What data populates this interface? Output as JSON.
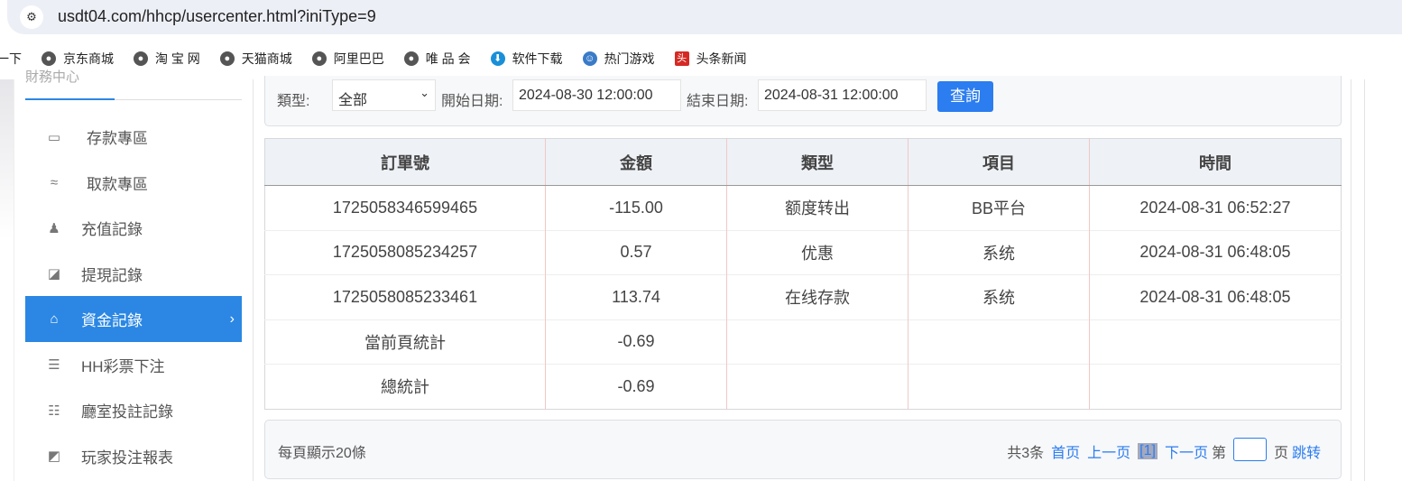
{
  "browser": {
    "url": "usdt04.com/hhcp/usercenter.html?iniType=9"
  },
  "bookmarks": [
    {
      "label": "一下",
      "icon": "none"
    },
    {
      "label": "京东商城",
      "icon": "globe-icon"
    },
    {
      "label": "淘 宝 网",
      "icon": "globe-icon"
    },
    {
      "label": "天猫商城",
      "icon": "globe-icon"
    },
    {
      "label": "阿里巴巴",
      "icon": "globe-icon"
    },
    {
      "label": "唯 品 会",
      "icon": "globe-icon"
    },
    {
      "label": "软件下载",
      "icon": "download-icon"
    },
    {
      "label": "热门游戏",
      "icon": "game-icon"
    },
    {
      "label": "头条新闻",
      "icon": "toutiao-icon"
    }
  ],
  "sidebar": {
    "title": "財務中心",
    "items": [
      {
        "label": "存款專區",
        "icon": "card-icon"
      },
      {
        "label": "取款專區",
        "icon": "hand-money-icon"
      },
      {
        "label": "充值記錄",
        "icon": "money-bag-icon"
      },
      {
        "label": "提現記錄",
        "icon": "wallet-icon"
      },
      {
        "label": "資金記錄",
        "icon": "funds-icon",
        "active": true
      },
      {
        "label": "HH彩票下注",
        "icon": "ticket-icon"
      },
      {
        "label": "廳室投註記錄",
        "icon": "list-icon"
      },
      {
        "label": "玩家投注報表",
        "icon": "chart-icon"
      }
    ]
  },
  "filter": {
    "type_label": "類型:",
    "type_value": "全部",
    "start_label": "開始日期:",
    "start_value": "2024-08-30 12:00:00",
    "end_label": "結束日期:",
    "end_value": "2024-08-31 12:00:00",
    "search_button": "查詢"
  },
  "table": {
    "headers": [
      "訂單號",
      "金額",
      "類型",
      "項目",
      "時間"
    ],
    "rows": [
      [
        "1725058346599465",
        "-115.00",
        "额度转出",
        "BB平台",
        "2024-08-31 06:52:27"
      ],
      [
        "1725058085234257",
        "0.57",
        "优惠",
        "系统",
        "2024-08-31 06:48:05"
      ],
      [
        "1725058085233461",
        "113.74",
        "在线存款",
        "系统",
        "2024-08-31 06:48:05"
      ]
    ],
    "page_total_label": "當前頁統計",
    "page_total": "-0.69",
    "grand_total_label": "總統計",
    "grand_total": "-0.69"
  },
  "footer": {
    "per_page": "每頁顯示20條",
    "total": "共3条",
    "first": "首页",
    "prev": "上一页",
    "current": "[1]",
    "next": "下一页",
    "page_prefix": "第",
    "page_suffix": "页",
    "jump": "跳转"
  },
  "colors": {
    "accent": "#2b87e3",
    "button": "#2b7df0"
  }
}
